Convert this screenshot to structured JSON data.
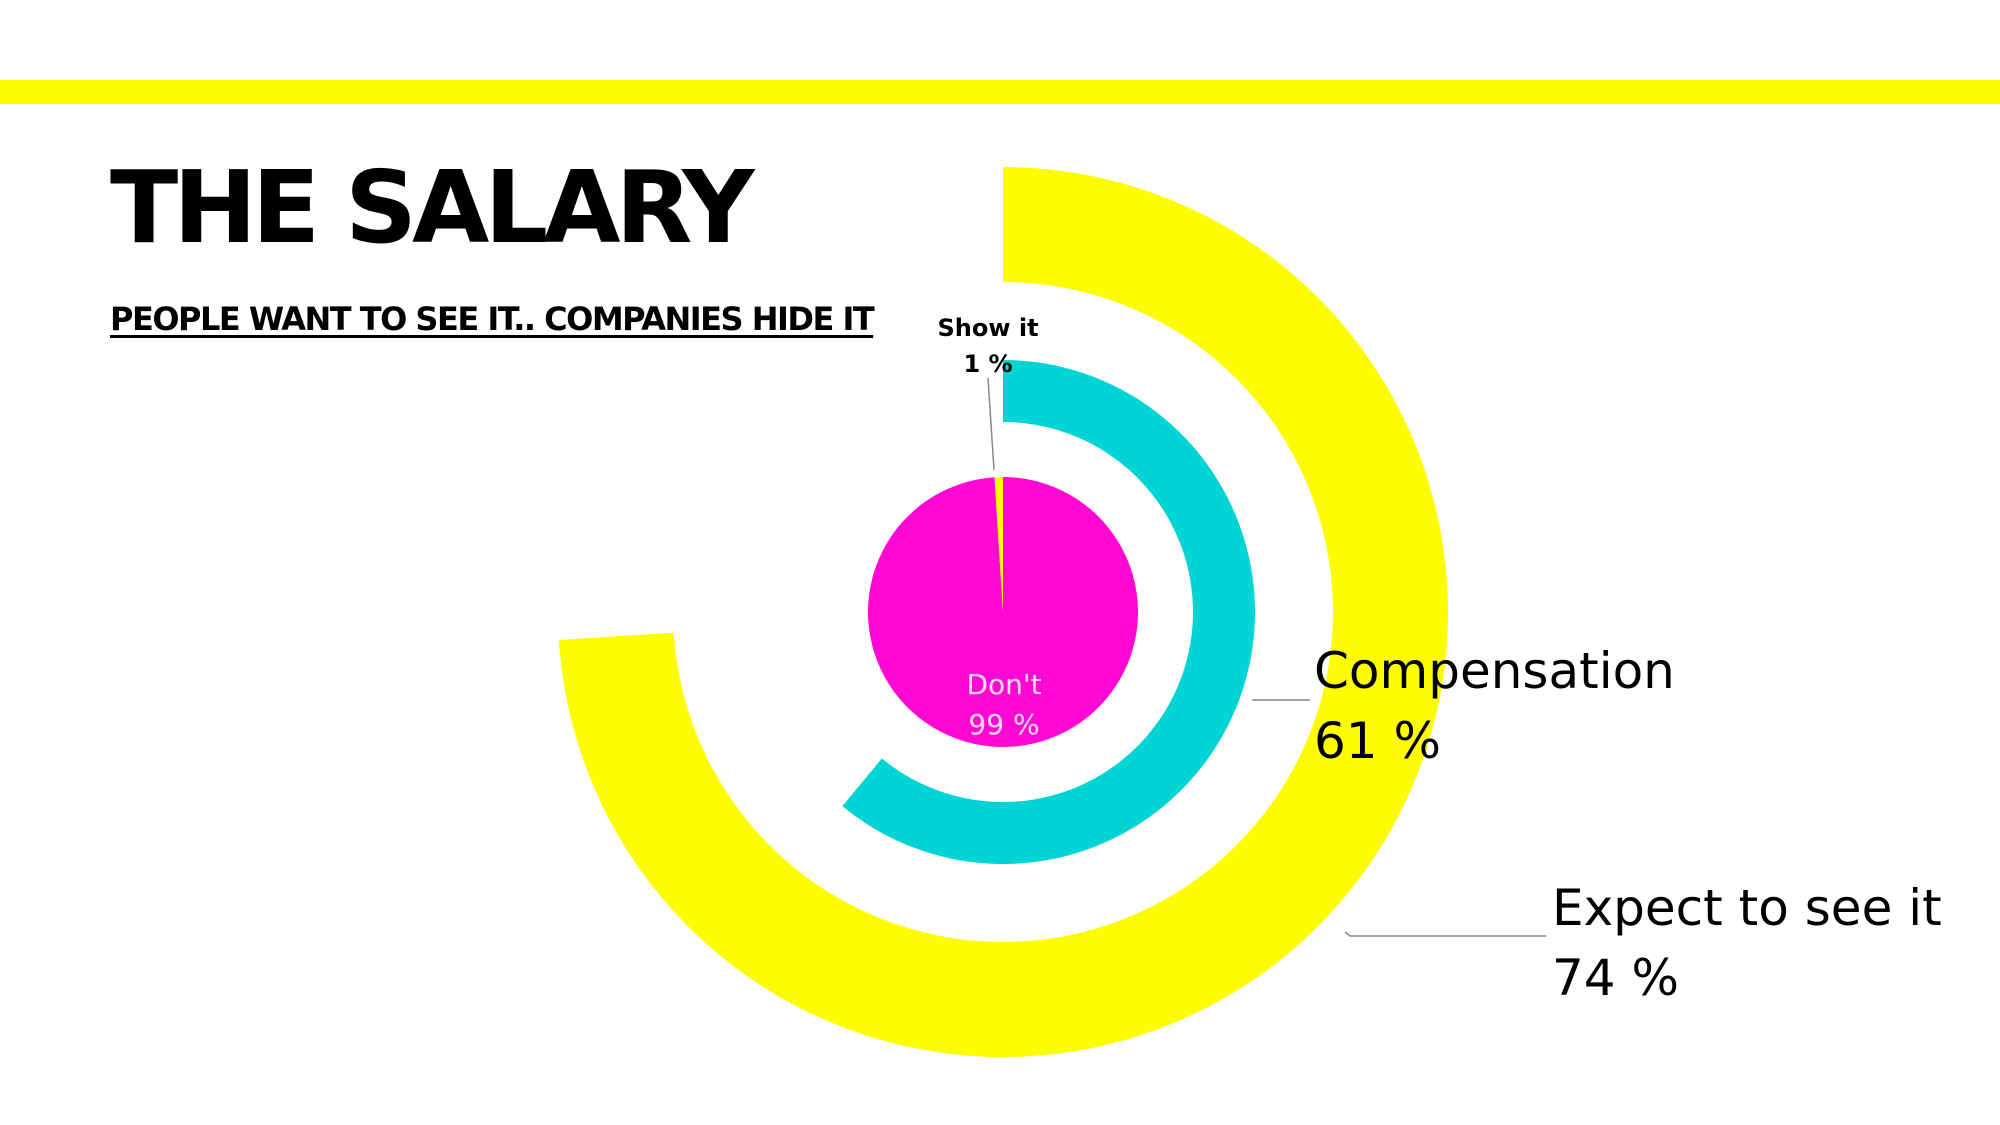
{
  "slide": {
    "title": "THE SALARY",
    "subtitle": "PEOPLE WANT TO SEE IT.. COMPANIES HIDE IT"
  },
  "colors": {
    "accent_yellow": "#fdfc00",
    "cyan": "#00d4d4",
    "magenta": "#ff08d4"
  },
  "chart_data": {
    "type": "radial-bar-with-pie",
    "rings": [
      {
        "name": "Expect to see it",
        "value": 74,
        "unit": "%",
        "color": "#fdfc00",
        "label": "Expect to see it",
        "value_label": "74 %"
      },
      {
        "name": "Compensation",
        "value": 61,
        "unit": "%",
        "color": "#00d4d4",
        "label": "Compensation",
        "value_label": "61 %"
      }
    ],
    "pie": [
      {
        "name": "Show it",
        "value": 1,
        "unit": "%",
        "color": "#fdfc00",
        "label": "Show it",
        "value_label": "1 %"
      },
      {
        "name": "Don't",
        "value": 99,
        "unit": "%",
        "color": "#ff08d4",
        "label": "Don't",
        "value_label": "99 %"
      }
    ]
  }
}
